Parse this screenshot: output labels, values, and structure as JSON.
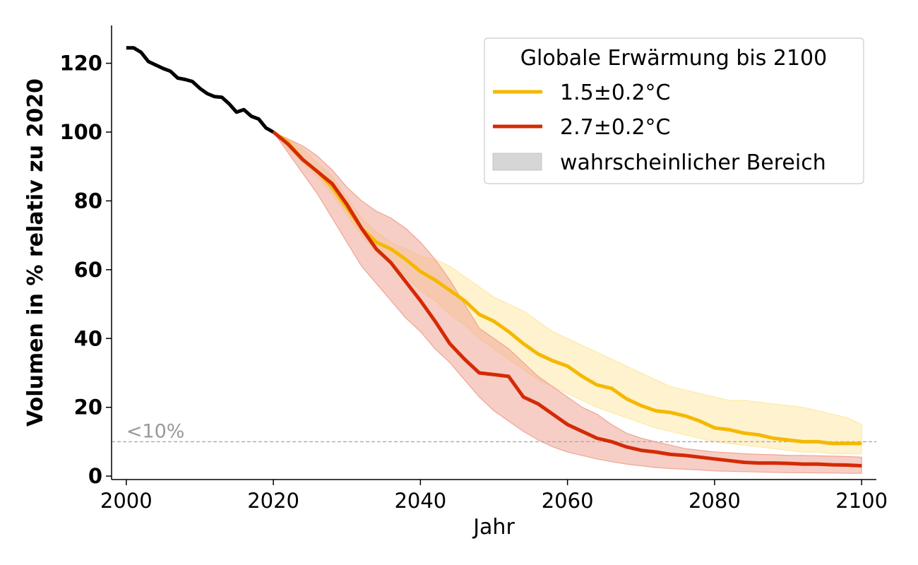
{
  "chart_data": {
    "type": "line",
    "xlabel": "Jahr",
    "ylabel": "Volumen in % relativ zu 2020",
    "xlim": [
      1998,
      2102
    ],
    "ylim": [
      -1,
      131
    ],
    "xticks": [
      2000,
      2020,
      2040,
      2060,
      2080,
      2100
    ],
    "yticks": [
      0,
      20,
      40,
      60,
      80,
      100,
      120
    ],
    "grid": false,
    "legend": {
      "title": "Globale Erwärmung bis 2100",
      "placement": "top-right",
      "range_label": "wahrscheinlicher Bereich",
      "range_color": "#d6d6d6"
    },
    "threshold": {
      "value": 10,
      "label": "<10%",
      "color": "#aaaaaa"
    },
    "historical": {
      "color": "#000000",
      "x": [
        2000,
        2001,
        2002,
        2003,
        2004,
        2005,
        2006,
        2007,
        2008,
        2009,
        2010,
        2011,
        2012,
        2013,
        2014,
        2015,
        2016,
        2017,
        2018,
        2019,
        2020
      ],
      "values": [
        124.5,
        124.5,
        123.2,
        120.5,
        119.5,
        118.5,
        117.7,
        115.7,
        115.3,
        114.7,
        112.7,
        111.2,
        110.3,
        110.1,
        108.2,
        105.8,
        106.5,
        104.6,
        103.8,
        101.2,
        100
      ]
    },
    "series": [
      {
        "name": "1.5±0.2°C",
        "color": "#f5b800",
        "band_color": "#fde9a6",
        "x": [
          2020,
          2022,
          2024,
          2026,
          2028,
          2030,
          2032,
          2034,
          2036,
          2038,
          2040,
          2042,
          2044,
          2046,
          2048,
          2050,
          2052,
          2054,
          2056,
          2058,
          2060,
          2062,
          2064,
          2066,
          2068,
          2070,
          2072,
          2074,
          2076,
          2078,
          2080,
          2082,
          2084,
          2086,
          2088,
          2090,
          2092,
          2094,
          2096,
          2098,
          2100
        ],
        "values": [
          100,
          97,
          92,
          88.5,
          84,
          78,
          72,
          68,
          66,
          63,
          59.5,
          57,
          54,
          51,
          47,
          45,
          42,
          38.5,
          35.5,
          33.5,
          32,
          29,
          26.5,
          25.5,
          22.5,
          20.5,
          19,
          18.5,
          17.5,
          16,
          14,
          13.5,
          12.5,
          12,
          11,
          10.5,
          10,
          10,
          9.5,
          9.5,
          9.5
        ],
        "low": [
          100,
          95,
          91,
          87,
          82,
          76,
          70,
          65,
          62,
          58,
          54,
          51,
          47,
          44,
          40,
          37,
          34,
          31,
          28,
          26,
          24,
          22,
          20,
          18.5,
          17,
          15.5,
          14,
          13,
          12,
          11,
          10,
          9.5,
          9,
          8.5,
          8,
          7.5,
          7,
          7,
          6.5,
          6.5,
          6.5
        ],
        "high": [
          100,
          98,
          95,
          91,
          87,
          81,
          75,
          71,
          68,
          66,
          64,
          63,
          61,
          58,
          55,
          52,
          50,
          48,
          45,
          42,
          40,
          38,
          36,
          34,
          32,
          30,
          28,
          26,
          25,
          24,
          23,
          22,
          22,
          21.5,
          21,
          20.5,
          20,
          19,
          18,
          17,
          15
        ]
      },
      {
        "name": "2.7±0.2°C",
        "color": "#d42a06",
        "band_color": "#eea595",
        "x": [
          2020,
          2022,
          2024,
          2026,
          2028,
          2030,
          2032,
          2034,
          2036,
          2038,
          2040,
          2042,
          2044,
          2046,
          2048,
          2050,
          2052,
          2054,
          2056,
          2058,
          2060,
          2062,
          2064,
          2066,
          2068,
          2070,
          2072,
          2074,
          2076,
          2078,
          2080,
          2082,
          2084,
          2086,
          2088,
          2090,
          2092,
          2094,
          2096,
          2098,
          2100
        ],
        "values": [
          100,
          96.5,
          92,
          88.5,
          85,
          79,
          72,
          66,
          62,
          56.5,
          51,
          45,
          38.5,
          34,
          30,
          29.5,
          29,
          23,
          21,
          18,
          15,
          13,
          11,
          10,
          8.5,
          7.5,
          7,
          6.3,
          6,
          5.5,
          5,
          4.5,
          4,
          3.8,
          3.8,
          3.7,
          3.5,
          3.5,
          3.3,
          3.2,
          3
        ],
        "low": [
          100,
          94,
          88,
          82,
          75,
          68,
          61,
          56,
          51,
          46,
          42,
          37,
          33,
          28,
          23,
          19,
          16,
          13,
          10.5,
          8.5,
          7,
          6,
          5,
          4.2,
          3.5,
          3,
          2.5,
          2.2,
          2,
          1.8,
          1.5,
          1.4,
          1.3,
          1.2,
          1.1,
          1,
          1,
          0.9,
          0.9,
          0.8,
          0.8
        ],
        "high": [
          100,
          98,
          96,
          93,
          89,
          84,
          80,
          77,
          75,
          72,
          68,
          63,
          57,
          50,
          43,
          40,
          37,
          33,
          29,
          26,
          23,
          20,
          18,
          15,
          12.5,
          11,
          10,
          9,
          8,
          7.5,
          7,
          6.8,
          6.5,
          6.3,
          6.2,
          6,
          6,
          5.9,
          5.8,
          5.7,
          5.5
        ]
      }
    ]
  }
}
